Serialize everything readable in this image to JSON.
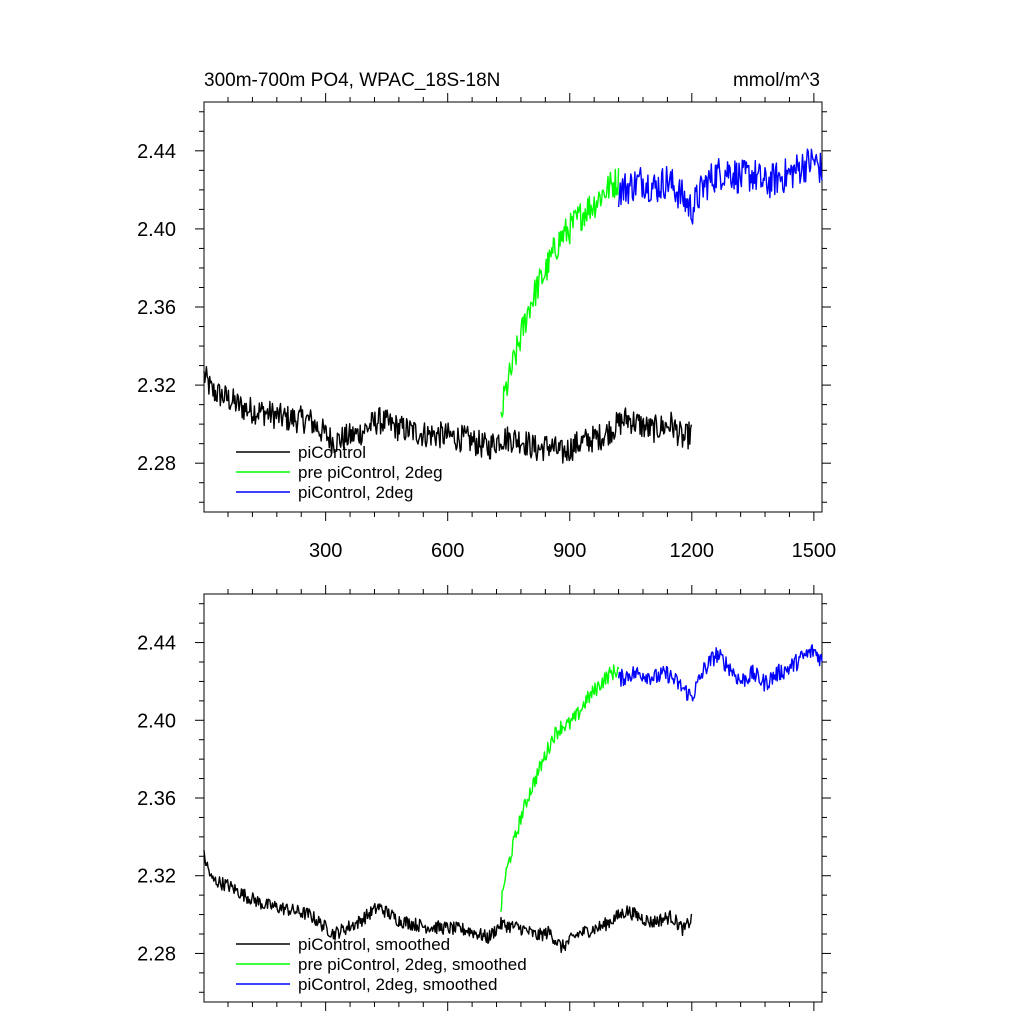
{
  "title_left": "300m-700m PO4, WPAC_18S-18N",
  "title_right": "mmol/m^3",
  "colors": {
    "piControl": "#000000",
    "pre_2deg": "#00ff00",
    "piControl_2deg": "#0000ff"
  },
  "chart_data": [
    {
      "type": "line",
      "title": "300m-700m PO4, WPAC_18S-18N",
      "units": "mmol/m^3",
      "xlim": [
        1,
        1520
      ],
      "ylim": [
        2.255,
        2.465
      ],
      "xticks": [
        300,
        600,
        900,
        1200,
        1500
      ],
      "yticks": [
        "2.44",
        "2.40",
        "2.36",
        "2.32",
        "2.28"
      ],
      "grid": false,
      "legend_position": "bottom-left",
      "series": [
        {
          "name": "piControl",
          "color": "#000000",
          "noise": 0.007,
          "x": [
            1,
            20,
            60,
            100,
            150,
            200,
            260,
            320,
            380,
            430,
            480,
            540,
            600,
            650,
            700,
            730,
            780,
            820,
            850,
            880,
            920,
            980,
            1040,
            1100,
            1150,
            1180,
            1200
          ],
          "y": [
            2.325,
            2.317,
            2.313,
            2.308,
            2.306,
            2.303,
            2.302,
            2.291,
            2.295,
            2.302,
            2.298,
            2.295,
            2.294,
            2.292,
            2.288,
            2.293,
            2.292,
            2.287,
            2.289,
            2.285,
            2.29,
            2.294,
            2.303,
            2.297,
            2.3,
            2.292,
            2.296
          ]
        },
        {
          "name": "pre piControl, 2deg",
          "color": "#00ff00",
          "noise": 0.008,
          "x": [
            730,
            740,
            760,
            780,
            800,
            820,
            840,
            860,
            880,
            900,
            920,
            940,
            960,
            980,
            1000,
            1020
          ],
          "y": [
            2.3,
            2.315,
            2.33,
            2.345,
            2.36,
            2.37,
            2.378,
            2.388,
            2.396,
            2.4,
            2.405,
            2.41,
            2.413,
            2.418,
            2.422,
            2.425
          ]
        },
        {
          "name": "piControl, 2deg",
          "color": "#0000ff",
          "noise": 0.009,
          "x": [
            1020,
            1050,
            1080,
            1110,
            1140,
            1170,
            1200,
            1230,
            1260,
            1290,
            1320,
            1350,
            1380,
            1410,
            1440,
            1470,
            1500,
            1520
          ],
          "y": [
            2.42,
            2.422,
            2.425,
            2.421,
            2.425,
            2.418,
            2.41,
            2.422,
            2.428,
            2.43,
            2.426,
            2.428,
            2.423,
            2.426,
            2.428,
            2.432,
            2.435,
            2.43
          ]
        }
      ]
    },
    {
      "type": "line",
      "xlim": [
        1,
        1520
      ],
      "ylim": [
        2.255,
        2.465
      ],
      "xticks": [
        300,
        600,
        900,
        1200,
        1500
      ],
      "yticks": [
        "2.44",
        "2.40",
        "2.36",
        "2.32",
        "2.28"
      ],
      "grid": false,
      "legend_position": "bottom-left",
      "series": [
        {
          "name": "piControl, smoothed",
          "color": "#000000",
          "noise": 0.0035,
          "x": [
            1,
            20,
            60,
            100,
            150,
            200,
            260,
            320,
            380,
            430,
            480,
            540,
            600,
            650,
            700,
            730,
            780,
            820,
            850,
            880,
            920,
            980,
            1040,
            1100,
            1150,
            1180,
            1200
          ],
          "y": [
            2.33,
            2.318,
            2.315,
            2.31,
            2.305,
            2.303,
            2.3,
            2.29,
            2.296,
            2.304,
            2.297,
            2.294,
            2.293,
            2.292,
            2.288,
            2.295,
            2.293,
            2.289,
            2.291,
            2.283,
            2.29,
            2.294,
            2.302,
            2.296,
            2.299,
            2.292,
            2.298
          ]
        },
        {
          "name": "pre piControl, 2deg, smoothed",
          "color": "#00ff00",
          "noise": 0.004,
          "x": [
            730,
            740,
            760,
            780,
            800,
            820,
            840,
            860,
            880,
            900,
            920,
            940,
            960,
            980,
            1000,
            1020
          ],
          "y": [
            2.302,
            2.318,
            2.335,
            2.35,
            2.362,
            2.372,
            2.382,
            2.392,
            2.397,
            2.398,
            2.403,
            2.41,
            2.415,
            2.42,
            2.424,
            2.426
          ]
        },
        {
          "name": "piControl, 2deg, smoothed",
          "color": "#0000ff",
          "noise": 0.0045,
          "x": [
            1020,
            1050,
            1080,
            1110,
            1140,
            1170,
            1200,
            1230,
            1260,
            1290,
            1320,
            1350,
            1380,
            1410,
            1440,
            1470,
            1500,
            1520
          ],
          "y": [
            2.421,
            2.424,
            2.424,
            2.422,
            2.424,
            2.418,
            2.412,
            2.426,
            2.434,
            2.428,
            2.42,
            2.424,
            2.419,
            2.424,
            2.427,
            2.432,
            2.436,
            2.431
          ]
        }
      ]
    }
  ]
}
